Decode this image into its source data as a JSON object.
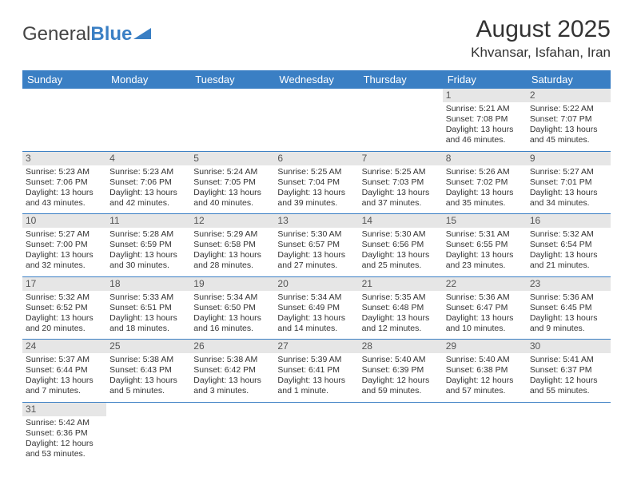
{
  "logo": {
    "general": "General",
    "blue": "Blue"
  },
  "title": "August 2025",
  "location": "Khvansar, Isfahan, Iran",
  "colors": {
    "header_bg": "#3a7fc4",
    "header_fg": "#ffffff",
    "daynum_bg": "#e6e6e6",
    "rule": "#3a7fc4",
    "text": "#333333"
  },
  "day_headers": [
    "Sunday",
    "Monday",
    "Tuesday",
    "Wednesday",
    "Thursday",
    "Friday",
    "Saturday"
  ],
  "weeks": [
    [
      null,
      null,
      null,
      null,
      null,
      {
        "n": "1",
        "rise": "5:21 AM",
        "set": "7:08 PM",
        "dl": "13 hours and 46 minutes."
      },
      {
        "n": "2",
        "rise": "5:22 AM",
        "set": "7:07 PM",
        "dl": "13 hours and 45 minutes."
      }
    ],
    [
      {
        "n": "3",
        "rise": "5:23 AM",
        "set": "7:06 PM",
        "dl": "13 hours and 43 minutes."
      },
      {
        "n": "4",
        "rise": "5:23 AM",
        "set": "7:06 PM",
        "dl": "13 hours and 42 minutes."
      },
      {
        "n": "5",
        "rise": "5:24 AM",
        "set": "7:05 PM",
        "dl": "13 hours and 40 minutes."
      },
      {
        "n": "6",
        "rise": "5:25 AM",
        "set": "7:04 PM",
        "dl": "13 hours and 39 minutes."
      },
      {
        "n": "7",
        "rise": "5:25 AM",
        "set": "7:03 PM",
        "dl": "13 hours and 37 minutes."
      },
      {
        "n": "8",
        "rise": "5:26 AM",
        "set": "7:02 PM",
        "dl": "13 hours and 35 minutes."
      },
      {
        "n": "9",
        "rise": "5:27 AM",
        "set": "7:01 PM",
        "dl": "13 hours and 34 minutes."
      }
    ],
    [
      {
        "n": "10",
        "rise": "5:27 AM",
        "set": "7:00 PM",
        "dl": "13 hours and 32 minutes."
      },
      {
        "n": "11",
        "rise": "5:28 AM",
        "set": "6:59 PM",
        "dl": "13 hours and 30 minutes."
      },
      {
        "n": "12",
        "rise": "5:29 AM",
        "set": "6:58 PM",
        "dl": "13 hours and 28 minutes."
      },
      {
        "n": "13",
        "rise": "5:30 AM",
        "set": "6:57 PM",
        "dl": "13 hours and 27 minutes."
      },
      {
        "n": "14",
        "rise": "5:30 AM",
        "set": "6:56 PM",
        "dl": "13 hours and 25 minutes."
      },
      {
        "n": "15",
        "rise": "5:31 AM",
        "set": "6:55 PM",
        "dl": "13 hours and 23 minutes."
      },
      {
        "n": "16",
        "rise": "5:32 AM",
        "set": "6:54 PM",
        "dl": "13 hours and 21 minutes."
      }
    ],
    [
      {
        "n": "17",
        "rise": "5:32 AM",
        "set": "6:52 PM",
        "dl": "13 hours and 20 minutes."
      },
      {
        "n": "18",
        "rise": "5:33 AM",
        "set": "6:51 PM",
        "dl": "13 hours and 18 minutes."
      },
      {
        "n": "19",
        "rise": "5:34 AM",
        "set": "6:50 PM",
        "dl": "13 hours and 16 minutes."
      },
      {
        "n": "20",
        "rise": "5:34 AM",
        "set": "6:49 PM",
        "dl": "13 hours and 14 minutes."
      },
      {
        "n": "21",
        "rise": "5:35 AM",
        "set": "6:48 PM",
        "dl": "13 hours and 12 minutes."
      },
      {
        "n": "22",
        "rise": "5:36 AM",
        "set": "6:47 PM",
        "dl": "13 hours and 10 minutes."
      },
      {
        "n": "23",
        "rise": "5:36 AM",
        "set": "6:45 PM",
        "dl": "13 hours and 9 minutes."
      }
    ],
    [
      {
        "n": "24",
        "rise": "5:37 AM",
        "set": "6:44 PM",
        "dl": "13 hours and 7 minutes."
      },
      {
        "n": "25",
        "rise": "5:38 AM",
        "set": "6:43 PM",
        "dl": "13 hours and 5 minutes."
      },
      {
        "n": "26",
        "rise": "5:38 AM",
        "set": "6:42 PM",
        "dl": "13 hours and 3 minutes."
      },
      {
        "n": "27",
        "rise": "5:39 AM",
        "set": "6:41 PM",
        "dl": "13 hours and 1 minute."
      },
      {
        "n": "28",
        "rise": "5:40 AM",
        "set": "6:39 PM",
        "dl": "12 hours and 59 minutes."
      },
      {
        "n": "29",
        "rise": "5:40 AM",
        "set": "6:38 PM",
        "dl": "12 hours and 57 minutes."
      },
      {
        "n": "30",
        "rise": "5:41 AM",
        "set": "6:37 PM",
        "dl": "12 hours and 55 minutes."
      }
    ],
    [
      {
        "n": "31",
        "rise": "5:42 AM",
        "set": "6:36 PM",
        "dl": "12 hours and 53 minutes."
      },
      null,
      null,
      null,
      null,
      null,
      null
    ]
  ],
  "labels": {
    "sunrise": "Sunrise:",
    "sunset": "Sunset:",
    "daylight": "Daylight:"
  }
}
